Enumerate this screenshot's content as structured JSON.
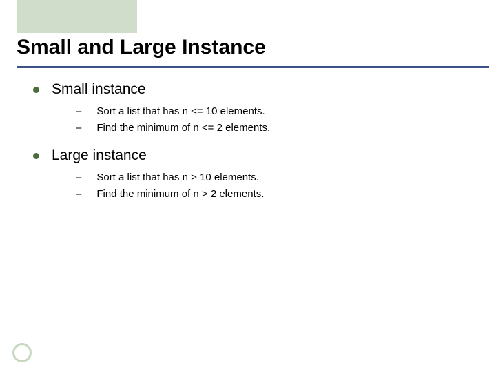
{
  "title": "Small and Large Instance",
  "colors": {
    "header_block": "#d0ddcb",
    "rule_line": "#3a5287",
    "bullet": "#4a6b3a",
    "footer_ring": "#c8d8c0",
    "text": "#000000",
    "background": "#ffffff"
  },
  "typography": {
    "title_fontsize": 30,
    "title_weight": "bold",
    "level1_fontsize": 21,
    "level2_fontsize": 15,
    "font_family": "Arial"
  },
  "sections": [
    {
      "heading": "Small instance",
      "items": [
        "Sort a list that has n <= 10 elements.",
        "Find the minimum of n <= 2 elements."
      ]
    },
    {
      "heading": "Large instance",
      "items": [
        "Sort a list that has n > 10 elements.",
        "Find the minimum of n > 2 elements."
      ]
    }
  ]
}
